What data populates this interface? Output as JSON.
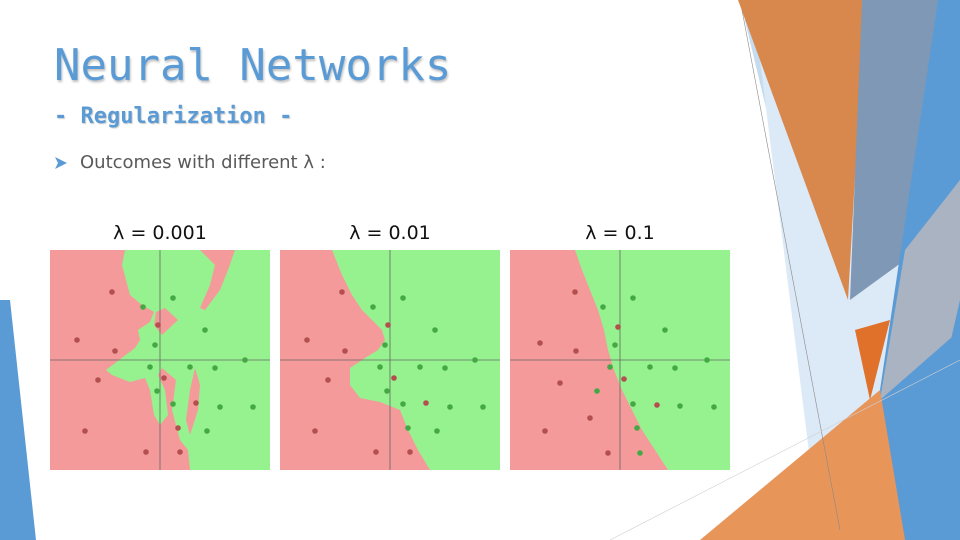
{
  "slide": {
    "title": "Neural Networks",
    "subtitle": "- Regularization -",
    "bullet": "Outcomes with different λ :"
  },
  "colors": {
    "title_blue": "#5b9bd5",
    "region_red": "#f59a9a",
    "region_green": "#96f28f",
    "point_red": "#b34f4f",
    "point_green": "#44a844",
    "deco_orange": "#e07b39",
    "deco_blue": "#5b9bd5"
  },
  "panels": [
    {
      "label": "λ = 0.001"
    },
    {
      "label": "λ = 0.01"
    },
    {
      "label": "λ = 0.1"
    }
  ]
}
